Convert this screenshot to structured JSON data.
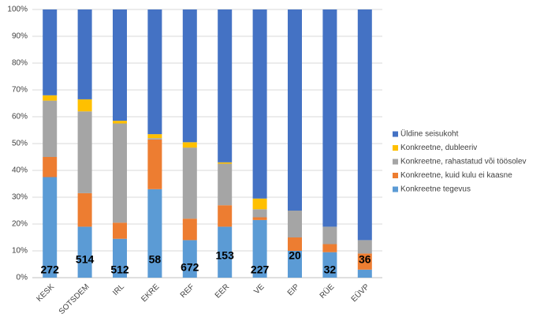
{
  "chart_data": {
    "type": "stacked_bar_100",
    "categories": [
      "KESK",
      "SOTSDEM",
      "IRL",
      "EKRE",
      "REF",
      "EER",
      "VE",
      "EIP",
      "RÜE",
      "EÜVP"
    ],
    "series": [
      {
        "name": "Konkreetne tegevus",
        "color": "#5b9bd5",
        "values": [
          37.5,
          19,
          14.5,
          33,
          14,
          19,
          21.5,
          10,
          9.5,
          3
        ]
      },
      {
        "name": "Konkreetne, kuid kulu ei kaasne",
        "color": "#ed7d31",
        "values": [
          7.5,
          12.5,
          6,
          18.5,
          8,
          8,
          1,
          5,
          3,
          6
        ]
      },
      {
        "name": "Konkreetne, rahastatud või töösolev",
        "color": "#a5a5a5",
        "values": [
          21,
          30.5,
          37,
          0.5,
          26.5,
          15.5,
          3,
          10,
          6.5,
          5
        ]
      },
      {
        "name": "Konkreetne, dubleeriv",
        "color": "#ffc000",
        "values": [
          2,
          4.5,
          1,
          1.5,
          2,
          0.5,
          4,
          0,
          0,
          0
        ]
      },
      {
        "name": "Üldine seisukoht",
        "color": "#4472c4",
        "values": [
          32,
          33.5,
          41.5,
          46.5,
          49.5,
          57,
          70.5,
          75,
          81,
          86
        ]
      }
    ],
    "counts": [
      "272",
      "514",
      "512",
      "58",
      "672",
      "153",
      "227",
      "20",
      "32",
      "36"
    ],
    "ylim": [
      0,
      100
    ],
    "yticks": [
      {
        "value": 0,
        "label": "0%"
      },
      {
        "value": 10,
        "label": "10%"
      },
      {
        "value": 20,
        "label": "20%"
      },
      {
        "value": 30,
        "label": "30%"
      },
      {
        "value": 40,
        "label": "40%"
      },
      {
        "value": 50,
        "label": "50%"
      },
      {
        "value": 60,
        "label": "60%"
      },
      {
        "value": 70,
        "label": "70%"
      },
      {
        "value": 80,
        "label": "80%"
      },
      {
        "value": 90,
        "label": "90%"
      },
      {
        "value": 100,
        "label": "100%"
      }
    ],
    "grid": true
  }
}
